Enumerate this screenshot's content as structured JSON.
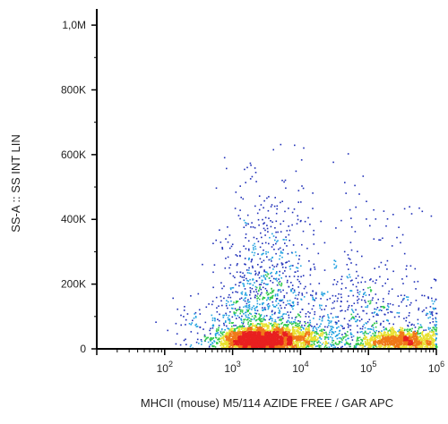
{
  "chart_data": {
    "type": "scatter",
    "subtype": "flow-cytometry-density-dot-plot",
    "title": "",
    "xlabel": "MHCII (mouse) M5/114 AZIDE FREE / GAR APC",
    "ylabel": "SS-A :: SS INT LIN",
    "x_scale": "log",
    "xlim": [
      10,
      1000000
    ],
    "ylim": [
      0,
      1050000
    ],
    "x_ticks": [
      {
        "value": 100,
        "base": "10",
        "exp": "2"
      },
      {
        "value": 1000,
        "base": "10",
        "exp": "3"
      },
      {
        "value": 10000,
        "base": "10",
        "exp": "4"
      },
      {
        "value": 100000,
        "base": "10",
        "exp": "5"
      },
      {
        "value": 1000000,
        "base": "10",
        "exp": "6"
      }
    ],
    "y_ticks": [
      {
        "value": 0,
        "label": "0"
      },
      {
        "value": 200000,
        "label": "200K"
      },
      {
        "value": 400000,
        "label": "400K"
      },
      {
        "value": 600000,
        "label": "600K"
      },
      {
        "value": 800000,
        "label": "800K"
      },
      {
        "value": 1000000,
        "label": "1,0M"
      }
    ],
    "grid": false,
    "legend": "none",
    "density_colors": [
      "#1f2fb8",
      "#1fa0e0",
      "#2ec84a",
      "#e8e030",
      "#f07818",
      "#e82020"
    ],
    "populations": [
      {
        "x_center": 2200,
        "x_spread_decades": 0.28,
        "y_center": 30000,
        "y_spread": 18000,
        "count": 2200
      },
      {
        "x_center": 6000,
        "x_spread_decades": 0.35,
        "y_center": 38000,
        "y_spread": 22000,
        "count": 1200
      },
      {
        "x_center": 2800,
        "x_spread_decades": 0.32,
        "y_center": 150000,
        "y_spread": 110000,
        "count": 700
      },
      {
        "x_center": 3500,
        "x_spread_decades": 0.35,
        "y_center": 350000,
        "y_spread": 120000,
        "count": 180
      },
      {
        "x_center": 300000,
        "x_spread_decades": 0.3,
        "y_center": 28000,
        "y_spread": 16000,
        "count": 1300
      },
      {
        "x_center": 80000,
        "x_spread_decades": 0.55,
        "y_center": 90000,
        "y_spread": 80000,
        "count": 500
      },
      {
        "x_center": 1000,
        "x_spread_decades": 0.45,
        "y_center": 60000,
        "y_spread": 50000,
        "count": 250
      },
      {
        "x_center": 60000,
        "x_spread_decades": 0.5,
        "y_center": 280000,
        "y_spread": 160000,
        "count": 90
      },
      {
        "x_center": 950000,
        "x_spread_decades": 0.08,
        "y_center": 60000,
        "y_spread": 60000,
        "count": 160
      }
    ]
  }
}
